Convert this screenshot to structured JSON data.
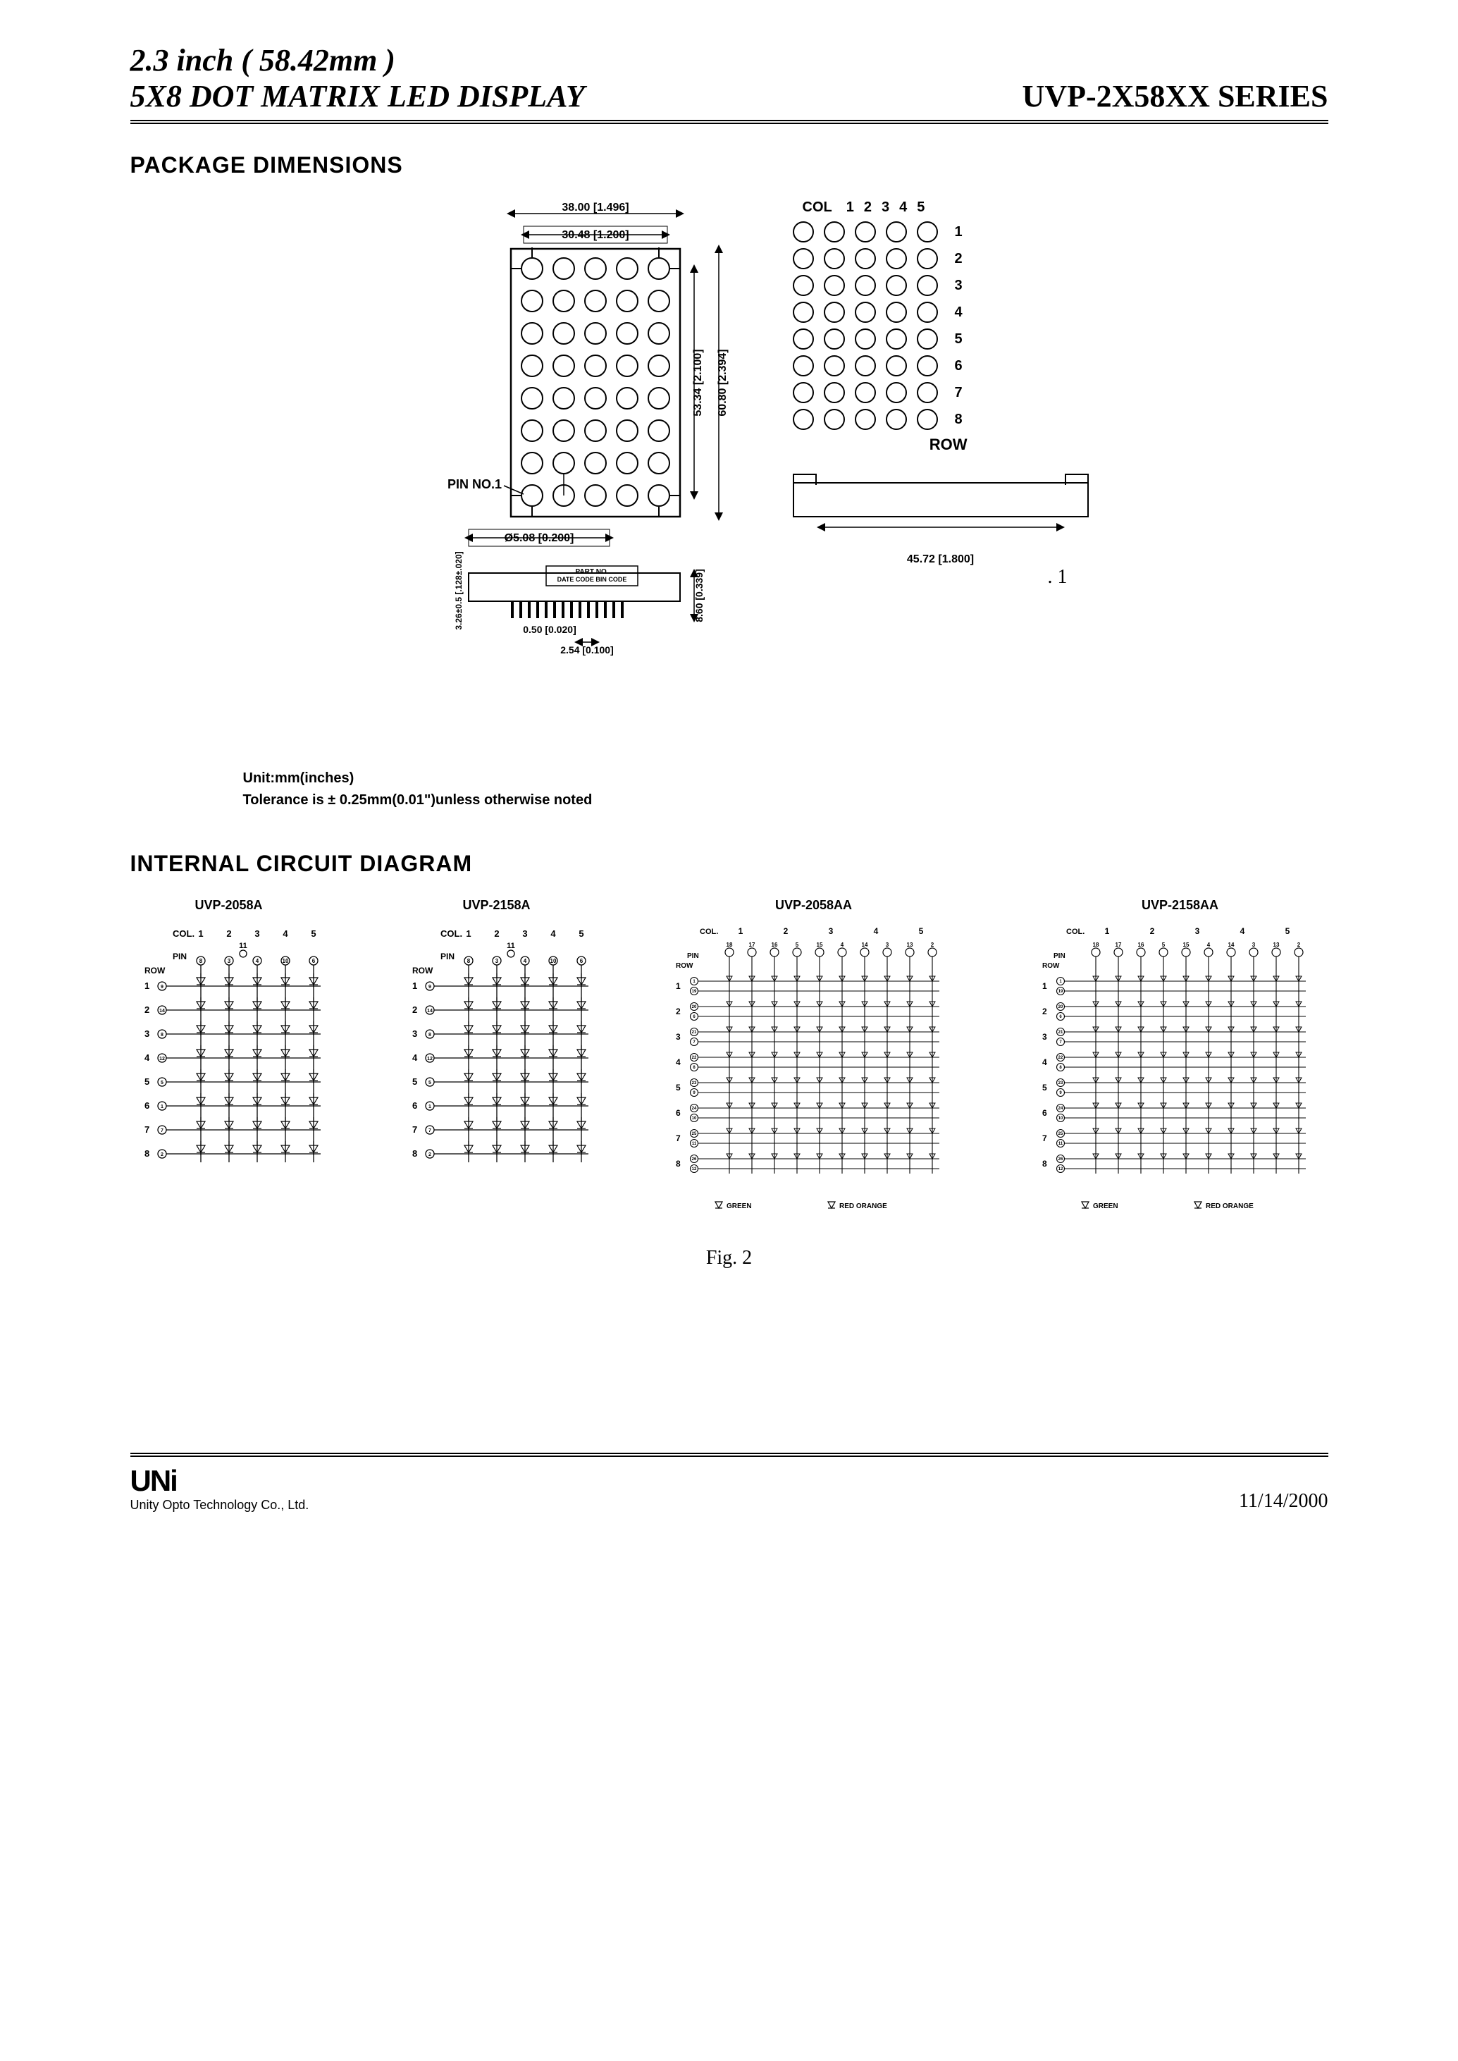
{
  "header": {
    "line1": "2.3 inch ( 58.42mm )",
    "line2_left": "5X8 DOT MATRIX LED DISPLAY",
    "line2_right": "UVP-2X58XX SERIES"
  },
  "section1": {
    "heading": "PACKAGE DIMENSIONS",
    "dims": {
      "width_outer": "38.00 [1.496]",
      "width_inner": "30.48 [1.200]",
      "height_inner": "53.34 [2.100]",
      "height_outer": "60.80 [2.394]",
      "dot_dia": "Ø5.08 [0.200]",
      "pin_pitch": "2.54 [0.100]",
      "pin_width": "0.50 [0.020]",
      "pin_height": "8.60 [0.339]",
      "thickness": "3.26±0.5 [.128±.020]",
      "side_width": "45.72 [1.800]",
      "pin_label": "PIN  NO.1",
      "part_no": "PART NO.",
      "date_code": "DATE CODE BIN CODE"
    },
    "led_grid": {
      "col_label": "COL",
      "cols": [
        "1",
        "2",
        "3",
        "4",
        "5"
      ],
      "rows": [
        "1",
        "2",
        "3",
        "4",
        "5",
        "6",
        "7",
        "8"
      ],
      "row_label": "ROW"
    },
    "fig1": ". 1",
    "unit_note": "Unit:mm(inches)",
    "tolerance_note": "Tolerance  is ± 0.25mm(0.01\")unless  otherwise  noted"
  },
  "section2": {
    "heading": "INTERNAL CIRCUIT DIAGRAM",
    "circuits": [
      {
        "title": "UVP-2058A",
        "dual": false
      },
      {
        "title": "UVP-2158A",
        "dual": false
      },
      {
        "title": "UVP-2058AA",
        "dual": true,
        "legend_left": "GREEN",
        "legend_right": "RED ORANGE"
      },
      {
        "title": "UVP-2158AA",
        "dual": true,
        "legend_left": "GREEN",
        "legend_right": "RED ORANGE"
      }
    ],
    "labels": {
      "col": "COL.",
      "pin": "PIN",
      "row": "ROW",
      "cols": [
        "1",
        "2",
        "3",
        "4",
        "5"
      ],
      "rows": [
        "1",
        "2",
        "3",
        "4",
        "5",
        "6",
        "7",
        "8"
      ],
      "pin_top_single": [
        "8",
        "3",
        "4",
        "10",
        "6"
      ],
      "pin_top_extra": "11",
      "pin_left_single": [
        "9",
        "14",
        "8",
        "12",
        "5",
        "1",
        "7",
        "2"
      ],
      "pin_top_dual": [
        "18",
        "17",
        "16",
        "5",
        "15",
        "4",
        "14",
        "3",
        "13",
        "2"
      ],
      "pin_left_dual": [
        "1",
        "19",
        "20",
        "6",
        "21",
        "7",
        "22",
        "8",
        "23",
        "9",
        "24",
        "10",
        "25",
        "11",
        "26",
        "12"
      ]
    },
    "fig2": "Fig. 2"
  },
  "footer": {
    "logo": "UNi",
    "company": "Unity Opto Technology Co., Ltd.",
    "date": "11/14/2000"
  },
  "styling": {
    "background_color": "#ffffff",
    "text_color": "#000000",
    "border_color": "#000000",
    "title_fontsize": 44,
    "heading_fontsize": 32,
    "body_fontsize": 20,
    "caption_fontsize": 28,
    "dim_fontsize": 16
  }
}
